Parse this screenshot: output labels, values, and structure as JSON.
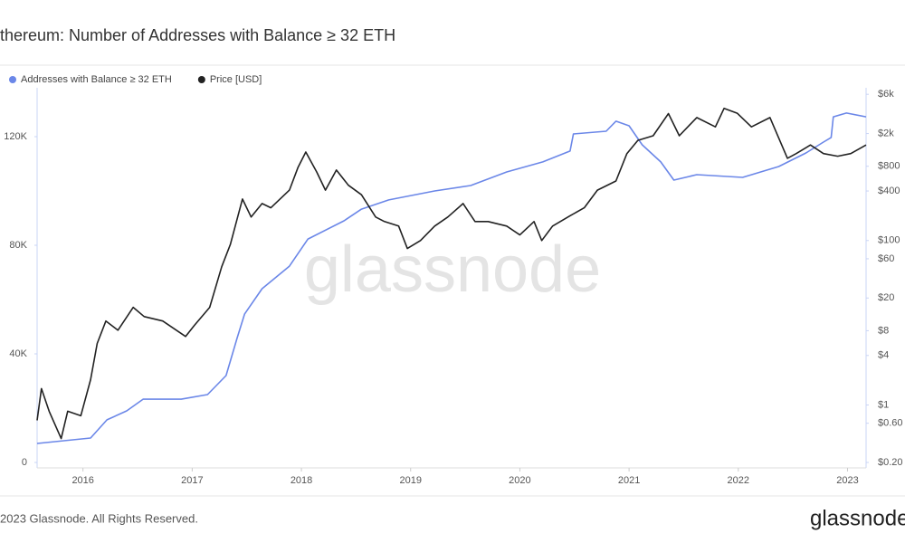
{
  "chart_data": {
    "type": "line",
    "title": "thereum: Number of Addresses with Balance ≥ 32 ETH",
    "watermark": "glassnode",
    "footer": "2023 Glassnode. All Rights Reserved.",
    "logo": "glassnode",
    "xlim": [
      2015.58,
      2023.17
    ],
    "xticks": [
      2016,
      2017,
      2018,
      2019,
      2020,
      2021,
      2022,
      2023
    ],
    "ylim": [
      0,
      138000
    ],
    "yticks": [
      0,
      {
        "value": 40000,
        "label": "40K"
      },
      {
        "value": 80000,
        "label": "80K"
      },
      {
        "value": 120000,
        "label": "120K"
      }
    ],
    "y2lim": [
      0.2,
      7200
    ],
    "y2log": true,
    "y2ticks": [
      {
        "value": 0.2,
        "label": "$0.20"
      },
      {
        "value": 0.6,
        "label": "$0.60"
      },
      {
        "value": 1,
        "label": "$1"
      },
      {
        "value": 4,
        "label": "$4"
      },
      {
        "value": 8,
        "label": "$8"
      },
      {
        "value": 20,
        "label": "$20"
      },
      {
        "value": 60,
        "label": "$60"
      },
      {
        "value": 100,
        "label": "$100"
      },
      {
        "value": 400,
        "label": "$400"
      },
      {
        "value": 800,
        "label": "$800"
      },
      {
        "value": 2000,
        "label": "$2k"
      },
      {
        "value": 6000,
        "label": "$6k"
      }
    ],
    "series": [
      {
        "name": "Addresses with Balance ≥ 32 ETH",
        "color": "#6b87e8",
        "axis": "y",
        "x": [
          2015.58,
          2016.07,
          2016.22,
          2016.4,
          2016.55,
          2016.9,
          2017.14,
          2017.31,
          2017.41,
          2017.48,
          2017.64,
          2017.89,
          2018.06,
          2018.39,
          2018.55,
          2018.8,
          2019.22,
          2019.55,
          2019.88,
          2020.21,
          2020.46,
          2020.49,
          2020.79,
          2020.88,
          2021.0,
          2021.12,
          2021.29,
          2021.41,
          2021.62,
          2022.04,
          2022.37,
          2022.62,
          2022.78,
          2022.85,
          2022.87,
          2022.99,
          2023.17
        ],
        "values": [
          7000,
          9000,
          15700,
          19000,
          23300,
          23300,
          25000,
          32000,
          45700,
          54700,
          64000,
          72300,
          82300,
          89000,
          93300,
          96700,
          100000,
          102000,
          107000,
          110700,
          114700,
          121000,
          122000,
          125700,
          124000,
          117000,
          110700,
          104000,
          106000,
          105000,
          109000,
          114000,
          118000,
          119700,
          127300,
          128700,
          127300
        ]
      },
      {
        "name": "Price [USD]",
        "color": "#222222",
        "axis": "y2",
        "x": [
          2015.58,
          2015.62,
          2015.69,
          2015.8,
          2015.86,
          2015.98,
          2016.07,
          2016.13,
          2016.21,
          2016.32,
          2016.46,
          2016.56,
          2016.73,
          2016.94,
          2017.02,
          2017.16,
          2017.27,
          2017.35,
          2017.46,
          2017.54,
          2017.64,
          2017.72,
          2017.89,
          2017.97,
          2018.04,
          2018.14,
          2018.22,
          2018.32,
          2018.43,
          2018.55,
          2018.68,
          2018.76,
          2018.89,
          2018.97,
          2019.09,
          2019.22,
          2019.34,
          2019.48,
          2019.59,
          2019.71,
          2019.88,
          2020.0,
          2020.13,
          2020.2,
          2020.3,
          2020.46,
          2020.59,
          2020.71,
          2020.88,
          2020.98,
          2021.08,
          2021.22,
          2021.36,
          2021.46,
          2021.62,
          2021.79,
          2021.87,
          2021.99,
          2022.12,
          2022.29,
          2022.45,
          2022.53,
          2022.66,
          2022.78,
          2022.91,
          2023.03,
          2023.17
        ],
        "values": [
          0.65,
          1.58,
          0.84,
          0.39,
          0.84,
          0.74,
          2.03,
          5.6,
          10.5,
          8.1,
          15.4,
          11.9,
          10.5,
          6.8,
          9.3,
          15.4,
          48,
          90,
          320,
          193,
          282,
          250,
          410,
          780,
          1190,
          680,
          410,
          720,
          470,
          360,
          193,
          170,
          150,
          80,
          100,
          150,
          193,
          282,
          170,
          170,
          150,
          117,
          170,
          100,
          150,
          200,
          250,
          410,
          530,
          1140,
          1650,
          1880,
          3500,
          1880,
          3130,
          2410,
          4050,
          3530,
          2410,
          3130,
          1000,
          1140,
          1450,
          1140,
          1060,
          1140,
          1450
        ]
      }
    ]
  }
}
